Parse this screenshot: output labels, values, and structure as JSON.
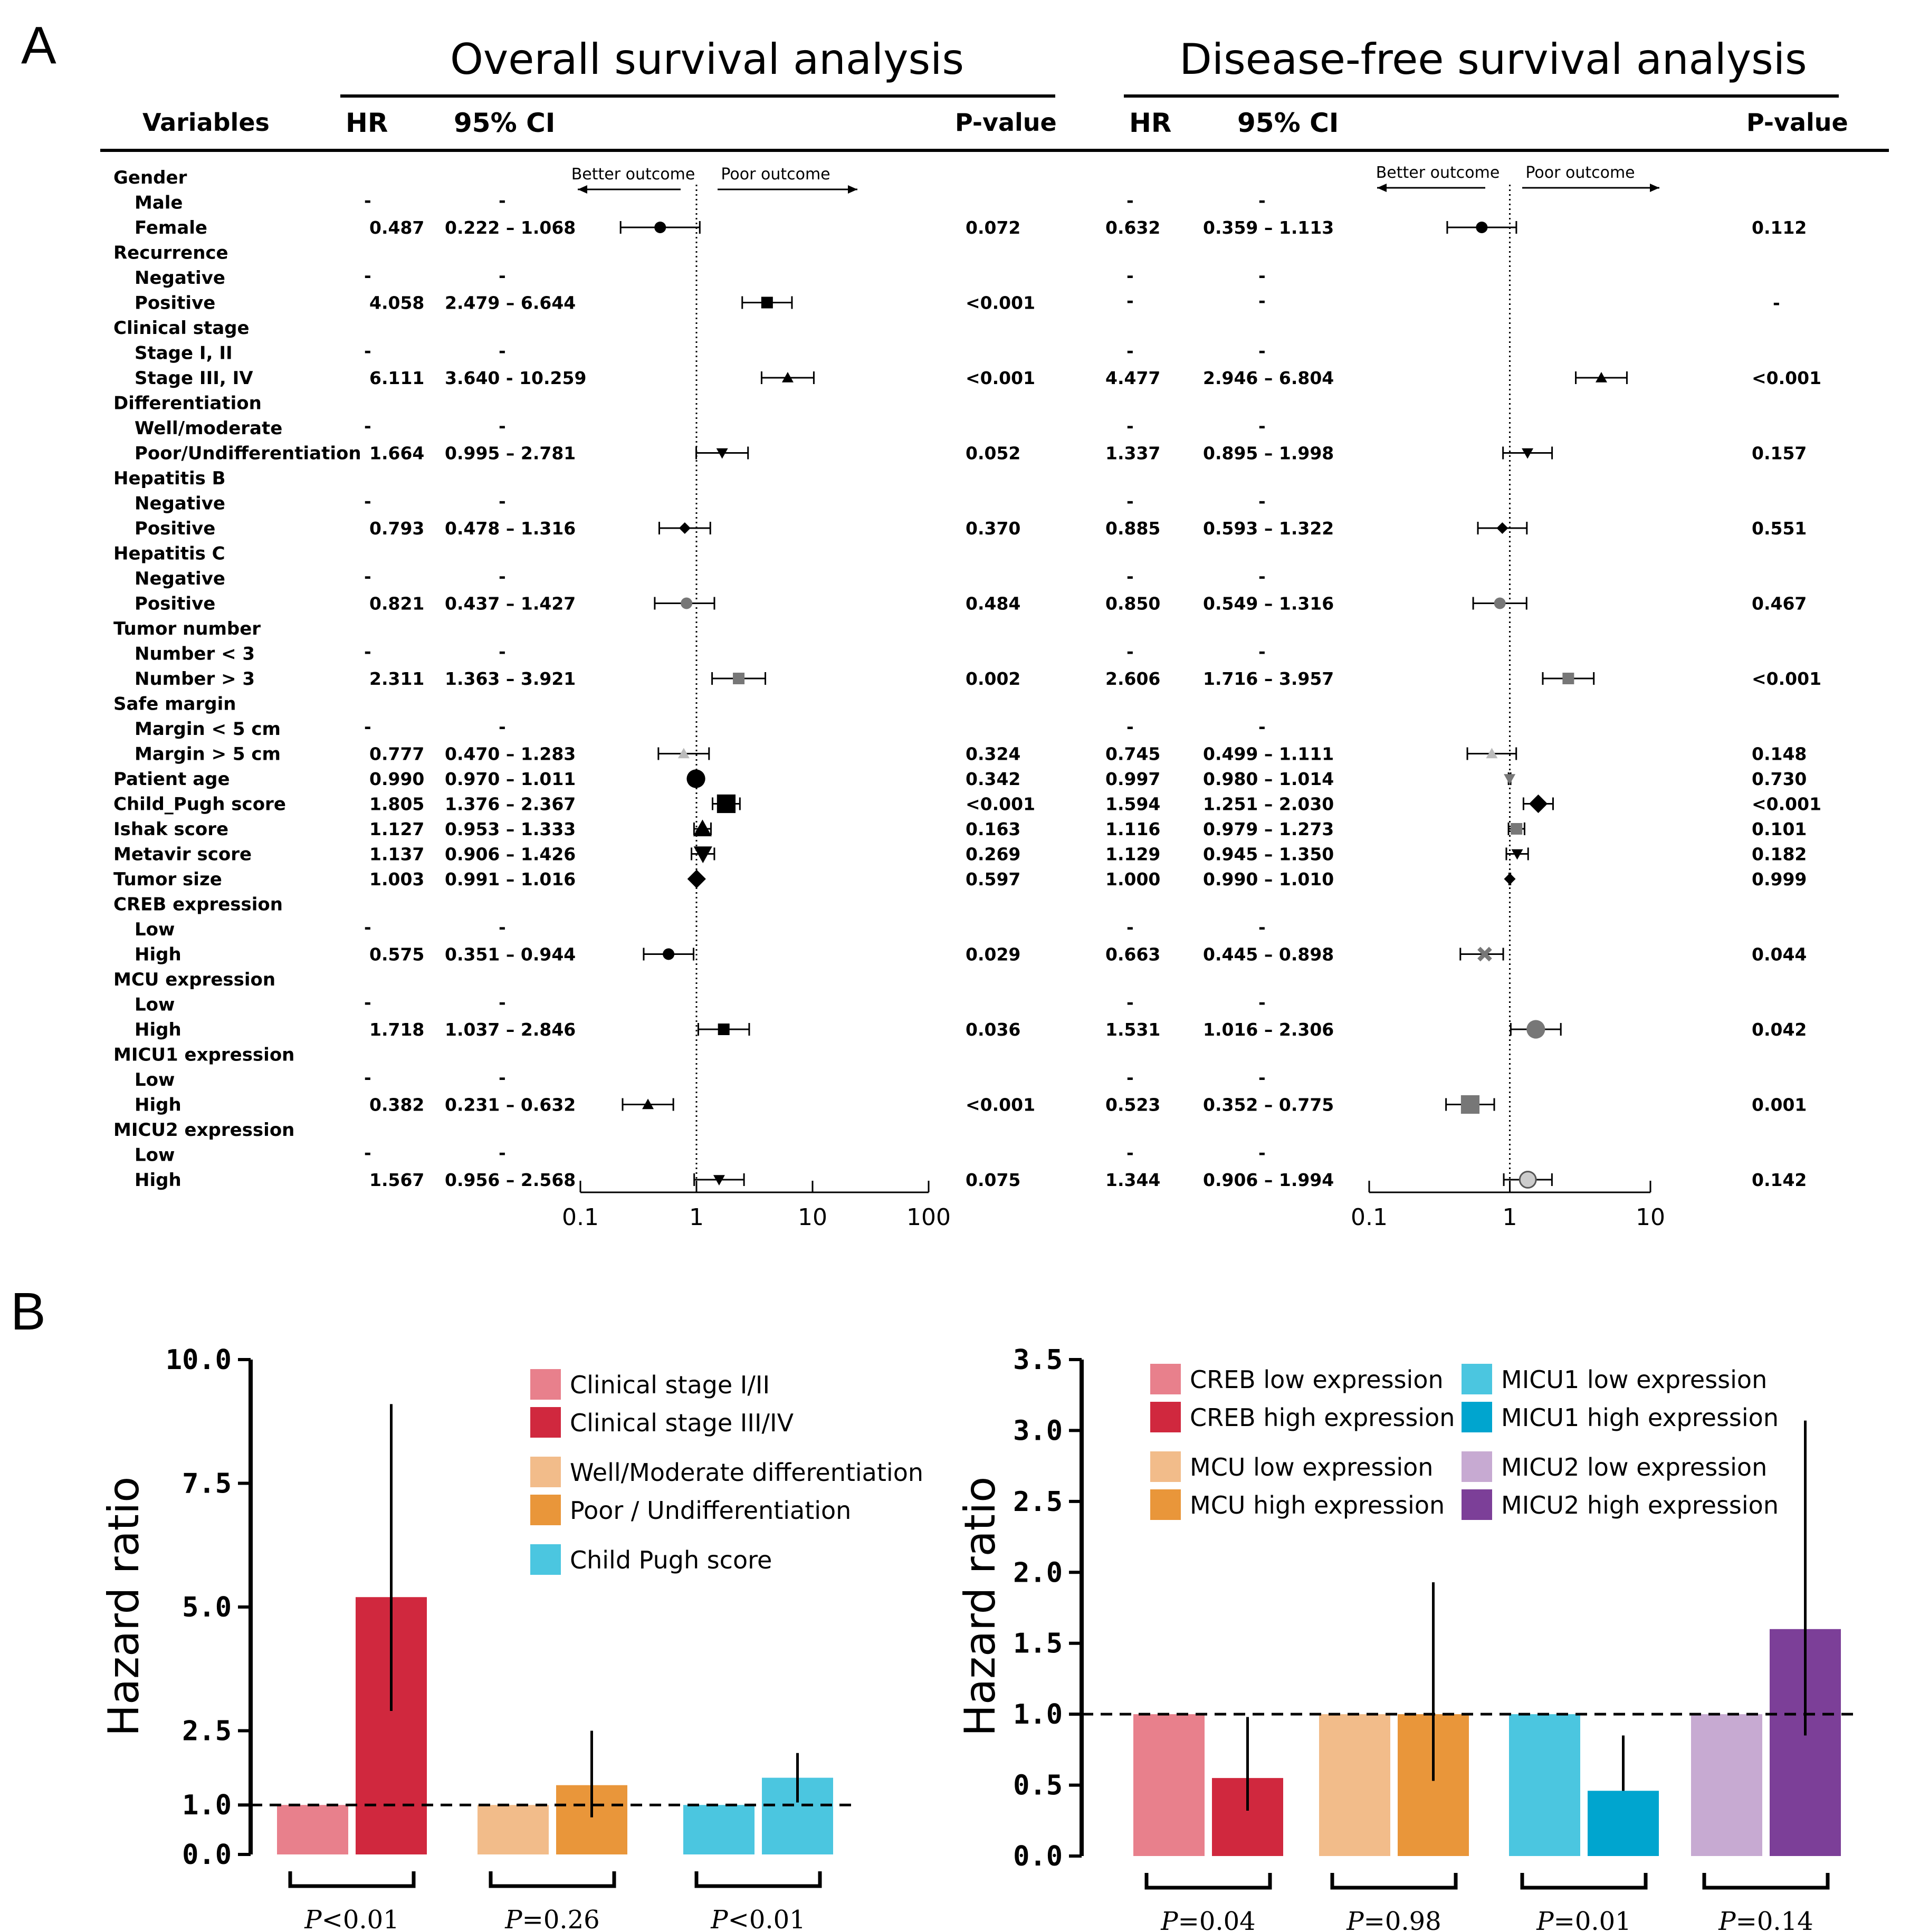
{
  "panel_letters": {
    "a": "A",
    "b": "B"
  },
  "forest": {
    "os_title": "Overall survival analysis",
    "dfs_title": "Disease-free survival analysis",
    "headers": {
      "variables": "Variables",
      "hr": "HR",
      "ci": "95% CI",
      "p": "P-value"
    },
    "better_outcome": "Better outcome",
    "poor_outcome": "Poor outcome",
    "os_axis_ticks": [
      "0.1",
      "1",
      "10",
      "100"
    ],
    "dfs_axis_ticks": [
      "0.1",
      "1",
      "10"
    ],
    "os_axis_values": [
      0.1,
      1,
      10,
      100
    ],
    "dfs_axis_values": [
      0.1,
      1,
      10
    ],
    "rows": [
      {
        "label": "Gender",
        "group": true
      },
      {
        "label": "Male",
        "os_hr": "-",
        "os_ci": "-",
        "dfs_hr": "-",
        "dfs_ci": "-"
      },
      {
        "label": "Female",
        "os_hr": "0.487",
        "os_ci": "0.222 – 1.068",
        "os_p": "0.072",
        "os_est": [
          0.487,
          0.222,
          1.068
        ],
        "os_marker": "circle",
        "dfs_hr": "0.632",
        "dfs_ci": "0.359 – 1.113",
        "dfs_p": "0.112",
        "dfs_est": [
          0.632,
          0.359,
          1.113
        ],
        "dfs_marker": "circle"
      },
      {
        "label": "Recurrence",
        "group": true
      },
      {
        "label": "Negative",
        "os_hr": "-",
        "os_ci": "-",
        "dfs_hr": "-",
        "dfs_ci": "-"
      },
      {
        "label": "Positive",
        "os_hr": "4.058",
        "os_ci": "2.479 – 6.644",
        "os_p": "<0.001",
        "os_est": [
          4.058,
          2.479,
          6.644
        ],
        "os_marker": "square",
        "dfs_hr": "-",
        "dfs_ci": "-",
        "dfs_p": "-"
      },
      {
        "label": "Clinical stage",
        "group": true
      },
      {
        "label": "Stage I, II",
        "os_hr": "-",
        "os_ci": "-",
        "dfs_hr": "-",
        "dfs_ci": "-"
      },
      {
        "label": "Stage III, IV",
        "os_hr": "6.111",
        "os_ci": "3.640 - 10.259",
        "os_p": "<0.001",
        "os_est": [
          6.111,
          3.64,
          10.259
        ],
        "os_marker": "triangle",
        "dfs_hr": "4.477",
        "dfs_ci": "2.946 – 6.804",
        "dfs_p": "<0.001",
        "dfs_est": [
          4.477,
          2.946,
          6.804
        ],
        "dfs_marker": "triangle"
      },
      {
        "label": "Differentiation",
        "group": true
      },
      {
        "label": "Well/moderate",
        "os_hr": "-",
        "os_ci": "-",
        "dfs_hr": "-",
        "dfs_ci": "-"
      },
      {
        "label": "Poor/Undifferentiation",
        "os_hr": "1.664",
        "os_ci": "0.995 – 2.781",
        "os_p": "0.052",
        "os_est": [
          1.664,
          0.995,
          2.781
        ],
        "os_marker": "tri-down",
        "dfs_hr": "1.337",
        "dfs_ci": "0.895 – 1.998",
        "dfs_p": "0.157",
        "dfs_est": [
          1.337,
          0.895,
          1.998
        ],
        "dfs_marker": "tri-down"
      },
      {
        "label": "Hepatitis B",
        "group": true
      },
      {
        "label": "Negative",
        "os_hr": "-",
        "os_ci": "-",
        "dfs_hr": "-",
        "dfs_ci": "-"
      },
      {
        "label": "Positive",
        "os_hr": "0.793",
        "os_ci": "0.478 – 1.316",
        "os_p": "0.370",
        "os_est": [
          0.793,
          0.478,
          1.316
        ],
        "os_marker": "diamond",
        "dfs_hr": "0.885",
        "dfs_ci": "0.593 – 1.322",
        "dfs_p": "0.551",
        "dfs_est": [
          0.885,
          0.593,
          1.322
        ],
        "dfs_marker": "diamond"
      },
      {
        "label": "Hepatitis C",
        "group": true
      },
      {
        "label": "Negative",
        "os_hr": "-",
        "os_ci": "-",
        "dfs_hr": "-",
        "dfs_ci": "-"
      },
      {
        "label": "Positive",
        "os_hr": "0.821",
        "os_ci": "0.437 – 1.427",
        "os_p": "0.484",
        "os_est": [
          0.821,
          0.437,
          1.427
        ],
        "os_marker": "gcircle",
        "dfs_hr": "0.850",
        "dfs_ci": "0.549 – 1.316",
        "dfs_p": "0.467",
        "dfs_est": [
          0.85,
          0.549,
          1.316
        ],
        "dfs_marker": "gcircle"
      },
      {
        "label": "Tumor number",
        "group": true
      },
      {
        "label": "Number < 3",
        "os_hr": "-",
        "os_ci": "-",
        "dfs_hr": "-",
        "dfs_ci": "-"
      },
      {
        "label": "Number > 3",
        "os_hr": "2.311",
        "os_ci": "1.363 – 3.921",
        "os_p": "0.002",
        "os_est": [
          2.311,
          1.363,
          3.921
        ],
        "os_marker": "gsquare",
        "dfs_hr": "2.606",
        "dfs_ci": "1.716 – 3.957",
        "dfs_p": "<0.001",
        "dfs_est": [
          2.606,
          1.716,
          3.957
        ],
        "dfs_marker": "gsquare"
      },
      {
        "label": "Safe margin",
        "group": true
      },
      {
        "label": "Margin < 5 cm",
        "os_hr": "-",
        "os_ci": "-",
        "dfs_hr": "-",
        "dfs_ci": "-"
      },
      {
        "label": "Margin > 5 cm",
        "os_hr": "0.777",
        "os_ci": "0.470 – 1.283",
        "os_p": "0.324",
        "os_est": [
          0.777,
          0.47,
          1.283
        ],
        "os_marker": "ltriangle",
        "dfs_hr": "0.745",
        "dfs_ci": "0.499 – 1.111",
        "dfs_p": "0.148",
        "dfs_est": [
          0.745,
          0.499,
          1.111
        ],
        "dfs_marker": "ltriangle"
      },
      {
        "label": "Patient age",
        "group": true,
        "os_hr": "0.990",
        "os_ci": "0.970 – 1.011",
        "os_p": "0.342",
        "os_est": [
          0.99,
          0.97,
          1.011
        ],
        "os_marker": "bigcircle",
        "dfs_hr": "0.997",
        "dfs_ci": "0.980 – 1.014",
        "dfs_p": "0.730",
        "dfs_est": [
          0.997,
          0.98,
          1.014
        ],
        "dfs_marker": "gtri-down"
      },
      {
        "label": "Child_Pugh score",
        "group": true,
        "os_hr": "1.805",
        "os_ci": "1.376 – 2.367",
        "os_p": "<0.001",
        "os_est": [
          1.805,
          1.376,
          2.367
        ],
        "os_marker": "bigsquare",
        "dfs_hr": "1.594",
        "dfs_ci": "1.251 – 2.030",
        "dfs_p": "<0.001",
        "dfs_est": [
          1.594,
          1.251,
          2.03
        ],
        "dfs_marker": "bigdiamond"
      },
      {
        "label": "Ishak score",
        "group": true,
        "os_hr": "1.127",
        "os_ci": "0.953 – 1.333",
        "os_p": "0.163",
        "os_est": [
          1.127,
          0.953,
          1.333
        ],
        "os_marker": "bigtriangle",
        "dfs_hr": "1.116",
        "dfs_ci": "0.979 – 1.273",
        "dfs_p": "0.101",
        "dfs_est": [
          1.116,
          0.979,
          1.273
        ],
        "dfs_marker": "gsquare"
      },
      {
        "label": "Metavir score",
        "group": true,
        "os_hr": "1.137",
        "os_ci": "0.906 – 1.426",
        "os_p": "0.269",
        "os_est": [
          1.137,
          0.906,
          1.426
        ],
        "os_marker": "bigtri-down",
        "dfs_hr": "1.129",
        "dfs_ci": "0.945 – 1.350",
        "dfs_p": "0.182",
        "dfs_est": [
          1.129,
          0.945,
          1.35
        ],
        "dfs_marker": "tri-down"
      },
      {
        "label": "Tumor size",
        "group": true,
        "os_hr": "1.003",
        "os_ci": "0.991 – 1.016",
        "os_p": "0.597",
        "os_est": [
          1.003,
          0.991,
          1.016
        ],
        "os_marker": "bigdiamond",
        "dfs_hr": "1.000",
        "dfs_ci": "0.990 – 1.010",
        "dfs_p": "0.999",
        "dfs_est": [
          1.0,
          0.99,
          1.01
        ],
        "dfs_marker": "diamond"
      },
      {
        "label": "CREB expression",
        "group": true
      },
      {
        "label": "Low",
        "os_hr": "-",
        "os_ci": "-",
        "dfs_hr": "-",
        "dfs_ci": "-"
      },
      {
        "label": "High",
        "os_hr": "0.575",
        "os_ci": "0.351 – 0.944",
        "os_p": "0.029",
        "os_est": [
          0.575,
          0.351,
          0.944
        ],
        "os_marker": "circle",
        "dfs_hr": "0.663",
        "dfs_ci": "0.445 – 0.898",
        "dfs_p": "0.044",
        "dfs_est": [
          0.663,
          0.445,
          0.898
        ],
        "dfs_marker": "cross"
      },
      {
        "label": "MCU expression",
        "group": true
      },
      {
        "label": "Low",
        "os_hr": "-",
        "os_ci": "-",
        "dfs_hr": "-",
        "dfs_ci": "-"
      },
      {
        "label": "High",
        "os_hr": "1.718",
        "os_ci": "1.037 – 2.846",
        "os_p": "0.036",
        "os_est": [
          1.718,
          1.037,
          2.846
        ],
        "os_marker": "square",
        "dfs_hr": "1.531",
        "dfs_ci": "1.016 – 2.306",
        "dfs_p": "0.042",
        "dfs_est": [
          1.531,
          1.016,
          2.306
        ],
        "dfs_marker": "gbigcircle"
      },
      {
        "label": "MICU1 expression",
        "group": true
      },
      {
        "label": "Low",
        "os_hr": "-",
        "os_ci": "-",
        "dfs_hr": "-",
        "dfs_ci": "-"
      },
      {
        "label": "High",
        "os_hr": "0.382",
        "os_ci": "0.231 – 0.632",
        "os_p": "<0.001",
        "os_est": [
          0.382,
          0.231,
          0.632
        ],
        "os_marker": "triangle",
        "dfs_hr": "0.523",
        "dfs_ci": "0.352 – 0.775",
        "dfs_p": "0.001",
        "dfs_est": [
          0.523,
          0.352,
          0.775
        ],
        "dfs_marker": "gbigsquare"
      },
      {
        "label": "MICU2 expression",
        "group": true
      },
      {
        "label": "Low",
        "os_hr": "-",
        "os_ci": "-",
        "dfs_hr": "-",
        "dfs_ci": "-"
      },
      {
        "label": "High",
        "os_hr": "1.567",
        "os_ci": "0.956 – 2.568",
        "os_p": "0.075",
        "os_est": [
          1.567,
          0.956,
          2.568
        ],
        "os_marker": "tri-down",
        "dfs_hr": "1.344",
        "dfs_ci": "0.906 – 1.994",
        "dfs_p": "0.142",
        "dfs_est": [
          1.344,
          0.906,
          1.994
        ],
        "dfs_marker": "xcircle"
      }
    ]
  },
  "chart_data": [
    {
      "type": "bar",
      "ylabel": "Hazard ratio",
      "ylim": [
        0,
        10
      ],
      "yticks": [
        "0.0",
        "1.0",
        "2.5",
        "5.0",
        "7.5",
        "10.0"
      ],
      "ytick_values": [
        0,
        1,
        2.5,
        5,
        7.5,
        10
      ],
      "reference_line": 1.0,
      "groups": [
        {
          "p_prefix": "P",
          "p_rest": "<0.01",
          "bars": [
            {
              "name": "Clinical stage I/II",
              "value": 1.0,
              "color": "#E8808C"
            },
            {
              "name": "Clinical stage III/IV",
              "value": 5.2,
              "err": [
                2.9,
                9.1
              ],
              "color": "#D0283E"
            }
          ]
        },
        {
          "p_prefix": "P",
          "p_rest": "=0.26",
          "bars": [
            {
              "name": "Well/Moderate differentiation",
              "value": 1.0,
              "color": "#F2BC8A"
            },
            {
              "name": "Poor / Undifferentiation",
              "value": 1.4,
              "err": [
                0.75,
                2.5
              ],
              "color": "#E9963A"
            }
          ]
        },
        {
          "p_prefix": "P",
          "p_rest": "<0.01",
          "bars": [
            {
              "name": "Child Pugh score",
              "value": 1.0,
              "color": "#4BC6E0"
            },
            {
              "name": "Child Pugh score",
              "value": 1.55,
              "err": [
                1.05,
                2.05
              ],
              "color": "#4BC6E0"
            }
          ]
        }
      ],
      "legend": [
        {
          "label": "Clinical stage I/II",
          "color": "#E8808C"
        },
        {
          "label": "Clinical stage III/IV",
          "color": "#D0283E"
        },
        {
          "label": "Well/Moderate differentiation",
          "color": "#F2BC8A"
        },
        {
          "label": "Poor / Undifferentiation",
          "color": "#E9963A"
        },
        {
          "label": "Child Pugh score",
          "color": "#4BC6E0"
        }
      ]
    },
    {
      "type": "bar",
      "ylabel": "Hazard ratio",
      "ylim": [
        0,
        3.5
      ],
      "yticks": [
        "0.0",
        "0.5",
        "1.0",
        "1.5",
        "2.0",
        "2.5",
        "3.0",
        "3.5"
      ],
      "ytick_values": [
        0,
        0.5,
        1,
        1.5,
        2,
        2.5,
        3,
        3.5
      ],
      "reference_line": 1.0,
      "groups": [
        {
          "p_prefix": "P",
          "p_rest": "=0.04",
          "bars": [
            {
              "name": "CREB low expression",
              "value": 1.0,
              "color": "#E8808C"
            },
            {
              "name": "CREB high expression",
              "value": 0.55,
              "err": [
                0.32,
                0.98
              ],
              "color": "#D0283E"
            }
          ]
        },
        {
          "p_prefix": "P",
          "p_rest": "=0.98",
          "bars": [
            {
              "name": "MCU low expression",
              "value": 1.0,
              "color": "#F2BC8A"
            },
            {
              "name": "MCU high expression",
              "value": 1.0,
              "err": [
                0.53,
                1.93
              ],
              "color": "#E9963A"
            }
          ]
        },
        {
          "p_prefix": "P",
          "p_rest": "=0.01",
          "bars": [
            {
              "name": "MICU1 low expression",
              "value": 1.0,
              "color": "#4BC6E0"
            },
            {
              "name": "MICU1 high expression",
              "value": 0.46,
              "err": [
                0.46,
                0.85
              ],
              "color": "#00A5CF"
            }
          ]
        },
        {
          "p_prefix": "P",
          "p_rest": "=0.14",
          "bars": [
            {
              "name": "MICU2 low expression",
              "value": 1.0,
              "color": "#C7AAD2"
            },
            {
              "name": "MICU2 high expression",
              "value": 1.6,
              "err": [
                0.85,
                3.07
              ],
              "color": "#7C3F98"
            }
          ]
        }
      ],
      "legend": [
        {
          "label": "CREB low expression",
          "color": "#E8808C"
        },
        {
          "label": "CREB high expression",
          "color": "#D0283E"
        },
        {
          "label": "MCU low expression",
          "color": "#F2BC8A"
        },
        {
          "label": "MCU high expression",
          "color": "#E9963A"
        },
        {
          "label": "MICU1 low expression",
          "color": "#4BC6E0"
        },
        {
          "label": "MICU1 high expression",
          "color": "#00A5CF"
        },
        {
          "label": "MICU2 low expression",
          "color": "#C7AAD2"
        },
        {
          "label": "MICU2 high expression",
          "color": "#7C3F98"
        }
      ]
    }
  ]
}
